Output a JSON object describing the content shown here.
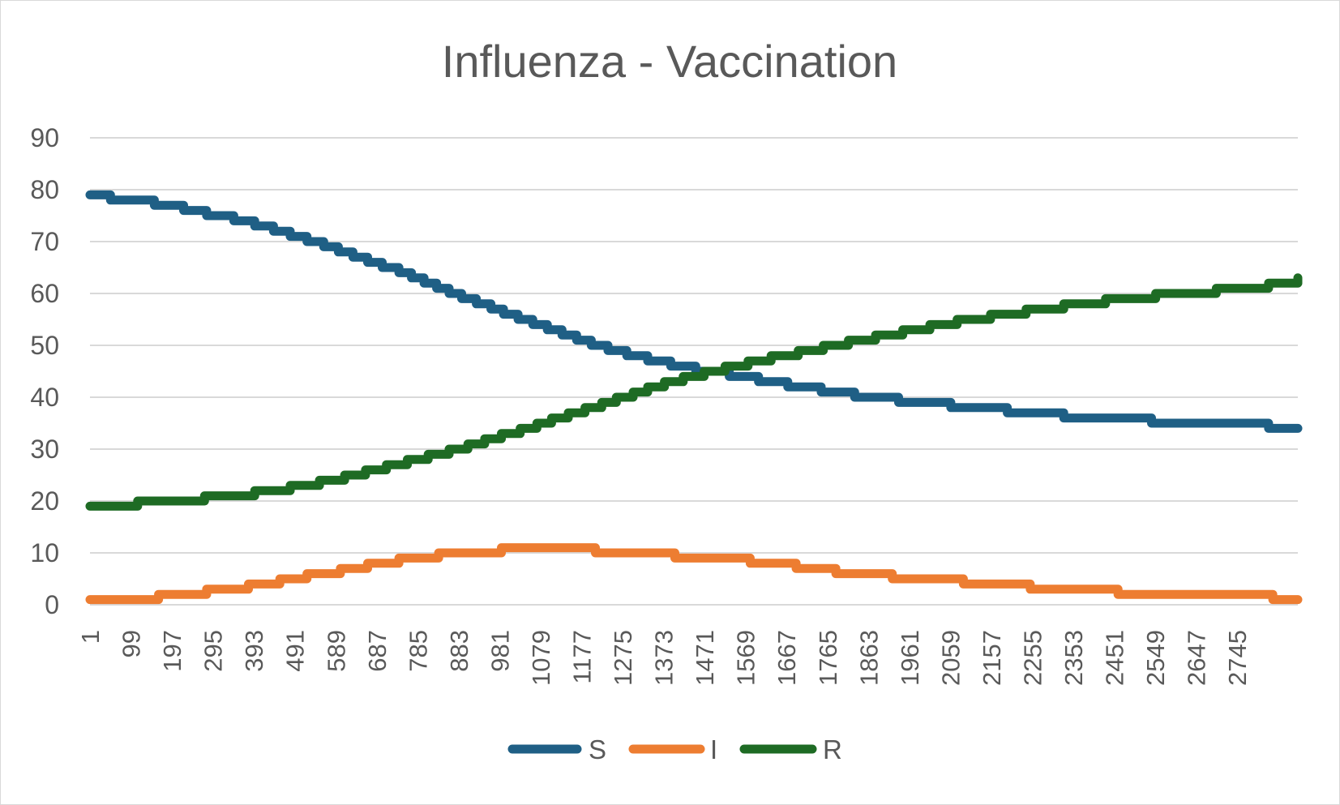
{
  "chart_data": {
    "type": "line",
    "title": "Influenza - Vaccination",
    "xlabel": "",
    "ylabel": "",
    "ylim": [
      0,
      90
    ],
    "yticks": [
      0,
      10,
      20,
      30,
      40,
      50,
      60,
      70,
      80,
      90
    ],
    "xlim": [
      1,
      2890
    ],
    "xticks": [
      1,
      99,
      197,
      295,
      393,
      491,
      589,
      687,
      785,
      883,
      981,
      1079,
      1177,
      1275,
      1373,
      1471,
      1569,
      1667,
      1765,
      1863,
      1961,
      2059,
      2157,
      2255,
      2353,
      2451,
      2549,
      2647,
      2745
    ],
    "grid": true,
    "legend_position": "bottom",
    "series": [
      {
        "name": "S",
        "color": "#1F5F85",
        "points": [
          [
            1,
            79
          ],
          [
            50,
            78
          ],
          [
            155,
            77
          ],
          [
            225,
            76
          ],
          [
            280,
            75
          ],
          [
            345,
            74
          ],
          [
            395,
            73
          ],
          [
            440,
            72
          ],
          [
            480,
            71
          ],
          [
            520,
            70
          ],
          [
            560,
            69
          ],
          [
            595,
            68
          ],
          [
            630,
            67
          ],
          [
            665,
            66
          ],
          [
            700,
            65
          ],
          [
            740,
            64
          ],
          [
            770,
            63
          ],
          [
            800,
            62
          ],
          [
            830,
            61
          ],
          [
            860,
            60
          ],
          [
            890,
            59
          ],
          [
            925,
            58
          ],
          [
            960,
            57
          ],
          [
            990,
            56
          ],
          [
            1025,
            55
          ],
          [
            1060,
            54
          ],
          [
            1095,
            53
          ],
          [
            1130,
            52
          ],
          [
            1165,
            51
          ],
          [
            1200,
            50
          ],
          [
            1240,
            49
          ],
          [
            1285,
            48
          ],
          [
            1335,
            47
          ],
          [
            1390,
            46
          ],
          [
            1450,
            45
          ],
          [
            1530,
            44
          ],
          [
            1600,
            43
          ],
          [
            1670,
            42
          ],
          [
            1750,
            41
          ],
          [
            1830,
            40
          ],
          [
            1935,
            39
          ],
          [
            2060,
            38
          ],
          [
            2195,
            37
          ],
          [
            2330,
            36
          ],
          [
            2540,
            35
          ],
          [
            2820,
            34
          ],
          [
            2890,
            34
          ]
        ]
      },
      {
        "name": "I",
        "color": "#ED7D31",
        "points": [
          [
            1,
            1
          ],
          [
            165,
            2
          ],
          [
            280,
            3
          ],
          [
            380,
            4
          ],
          [
            455,
            5
          ],
          [
            520,
            6
          ],
          [
            600,
            7
          ],
          [
            665,
            8
          ],
          [
            740,
            9
          ],
          [
            835,
            10
          ],
          [
            985,
            11
          ],
          [
            1210,
            10
          ],
          [
            1400,
            9
          ],
          [
            1580,
            8
          ],
          [
            1690,
            7
          ],
          [
            1785,
            6
          ],
          [
            1920,
            5
          ],
          [
            2090,
            4
          ],
          [
            2250,
            3
          ],
          [
            2460,
            2
          ],
          [
            2830,
            1
          ],
          [
            2890,
            1
          ]
        ]
      },
      {
        "name": "R",
        "color": "#1E6B24",
        "points": [
          [
            1,
            19
          ],
          [
            115,
            20
          ],
          [
            275,
            21
          ],
          [
            395,
            22
          ],
          [
            480,
            23
          ],
          [
            550,
            24
          ],
          [
            610,
            25
          ],
          [
            660,
            26
          ],
          [
            710,
            27
          ],
          [
            760,
            28
          ],
          [
            810,
            29
          ],
          [
            860,
            30
          ],
          [
            905,
            31
          ],
          [
            945,
            32
          ],
          [
            985,
            33
          ],
          [
            1030,
            34
          ],
          [
            1070,
            35
          ],
          [
            1105,
            36
          ],
          [
            1145,
            37
          ],
          [
            1185,
            38
          ],
          [
            1225,
            39
          ],
          [
            1260,
            40
          ],
          [
            1300,
            41
          ],
          [
            1335,
            42
          ],
          [
            1375,
            43
          ],
          [
            1420,
            44
          ],
          [
            1470,
            45
          ],
          [
            1520,
            46
          ],
          [
            1575,
            47
          ],
          [
            1630,
            48
          ],
          [
            1695,
            49
          ],
          [
            1755,
            50
          ],
          [
            1815,
            51
          ],
          [
            1880,
            52
          ],
          [
            1945,
            53
          ],
          [
            2010,
            54
          ],
          [
            2075,
            55
          ],
          [
            2155,
            56
          ],
          [
            2240,
            57
          ],
          [
            2330,
            58
          ],
          [
            2430,
            59
          ],
          [
            2550,
            60
          ],
          [
            2695,
            61
          ],
          [
            2820,
            62
          ],
          [
            2890,
            63
          ]
        ]
      }
    ]
  }
}
